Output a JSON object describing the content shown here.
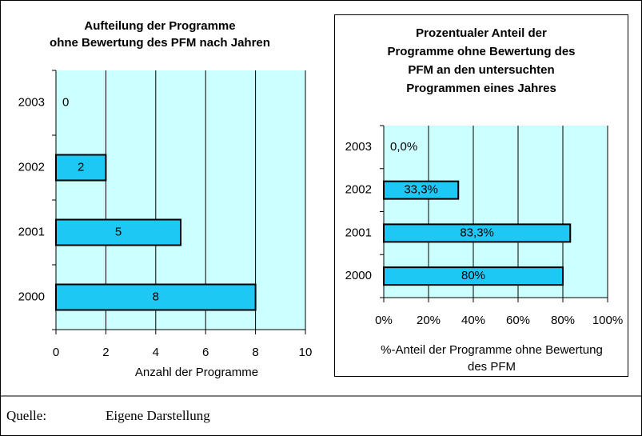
{
  "chart_data": [
    {
      "type": "bar",
      "orientation": "horizontal",
      "title": [
        "Aufteilung der Programme",
        "ohne Bewertung des PFM nach Jahren"
      ],
      "categories": [
        "2003",
        "2002",
        "2001",
        "2000"
      ],
      "values": [
        0,
        2,
        5,
        8
      ],
      "color": "#1ec8f5",
      "xlim": [
        0,
        10
      ],
      "xticks": [
        0,
        2,
        4,
        6,
        8,
        10
      ],
      "xlabel": [
        "Anzahl der Programme"
      ],
      "grid": true
    },
    {
      "type": "bar",
      "orientation": "horizontal",
      "title": [
        "Prozentualer Anteil der",
        "Programme ohne Bewertung des",
        "PFM an den untersuchten",
        "Programmen eines Jahres"
      ],
      "categories": [
        "2003",
        "2002",
        "2001",
        "2000"
      ],
      "values": [
        0,
        33.3,
        83.3,
        80
      ],
      "value_labels": [
        "0,0%",
        "33,3%",
        "83,3%",
        "80%"
      ],
      "color": "#1ec8f5",
      "xlim": [
        0,
        100
      ],
      "xticks": [
        {
          "value": 0,
          "label": "0%"
        },
        {
          "value": 20,
          "label": "20%"
        },
        {
          "value": 40,
          "label": "40%"
        },
        {
          "value": 60,
          "label": "60%"
        },
        {
          "value": 80,
          "label": "80%"
        },
        {
          "value": 100,
          "label": "100%"
        }
      ],
      "xlabel": [
        "%-Anteil der Programme ohne Bewertung",
        "des PFM"
      ],
      "grid": true
    }
  ],
  "source": {
    "label": "Quelle:",
    "text": "Eigene Darstellung"
  }
}
